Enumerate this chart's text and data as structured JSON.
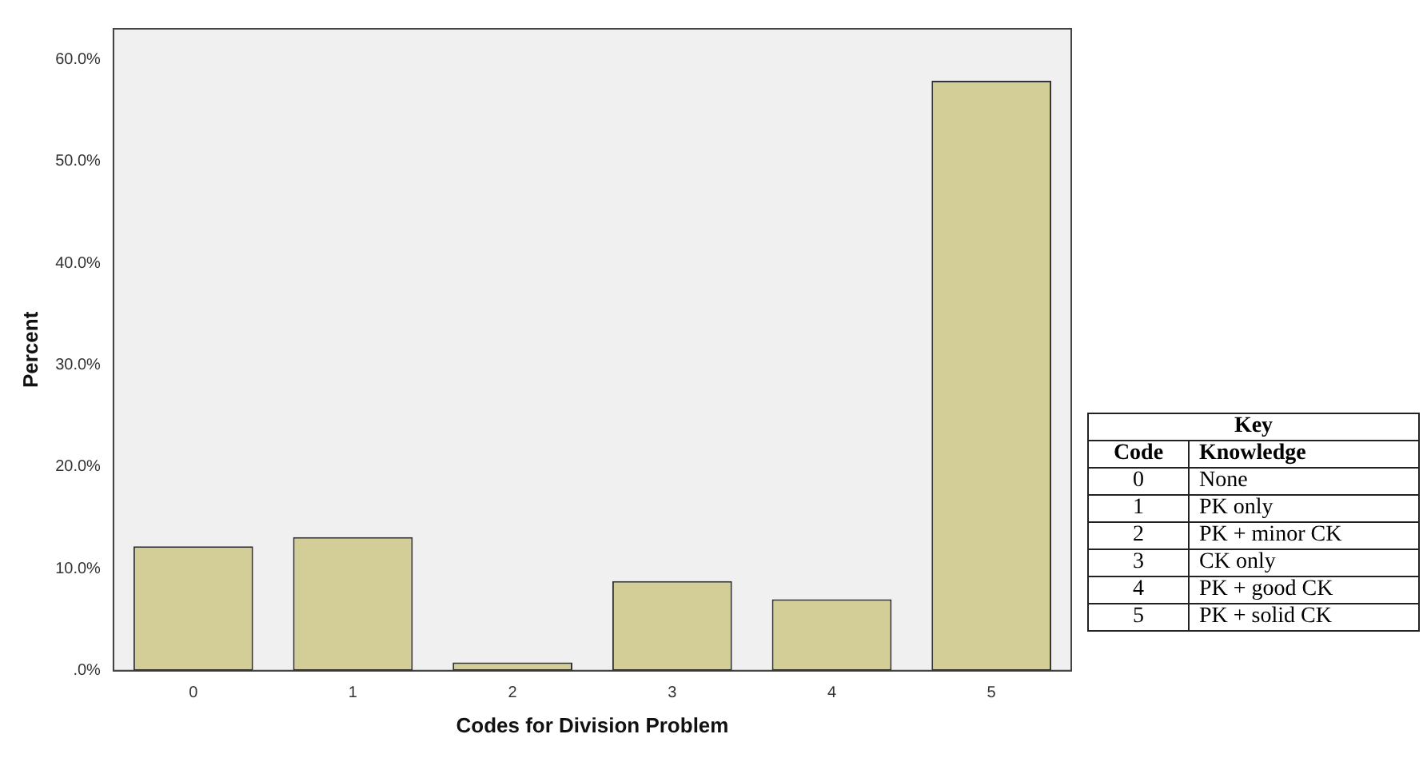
{
  "chart_data": {
    "type": "bar",
    "xlabel": "Codes for Division Problem",
    "ylabel": "Percent",
    "categories": [
      "0",
      "1",
      "2",
      "3",
      "4",
      "5"
    ],
    "values": [
      12.2,
      13.1,
      0.8,
      8.8,
      7.0,
      57.9
    ],
    "color": "#d3cd97",
    "ylim": [
      0,
      63
    ],
    "yticks": [
      {
        "value": 0,
        "label": ".0%"
      },
      {
        "value": 10,
        "label": "10.0%"
      },
      {
        "value": 20,
        "label": "20.0%"
      },
      {
        "value": 30,
        "label": "30.0%"
      },
      {
        "value": 40,
        "label": "40.0%"
      },
      {
        "value": 50,
        "label": "50.0%"
      },
      {
        "value": 60,
        "label": "60.0%"
      }
    ],
    "grid": false,
    "annotations": [
      "Key",
      "Code",
      "Knowledge",
      "0",
      "None",
      "1",
      "PK only",
      "2",
      "PK + minor CK",
      "3",
      "CK only",
      "4",
      "PK + good CK",
      "5",
      "PK + solid CK"
    ]
  }
}
